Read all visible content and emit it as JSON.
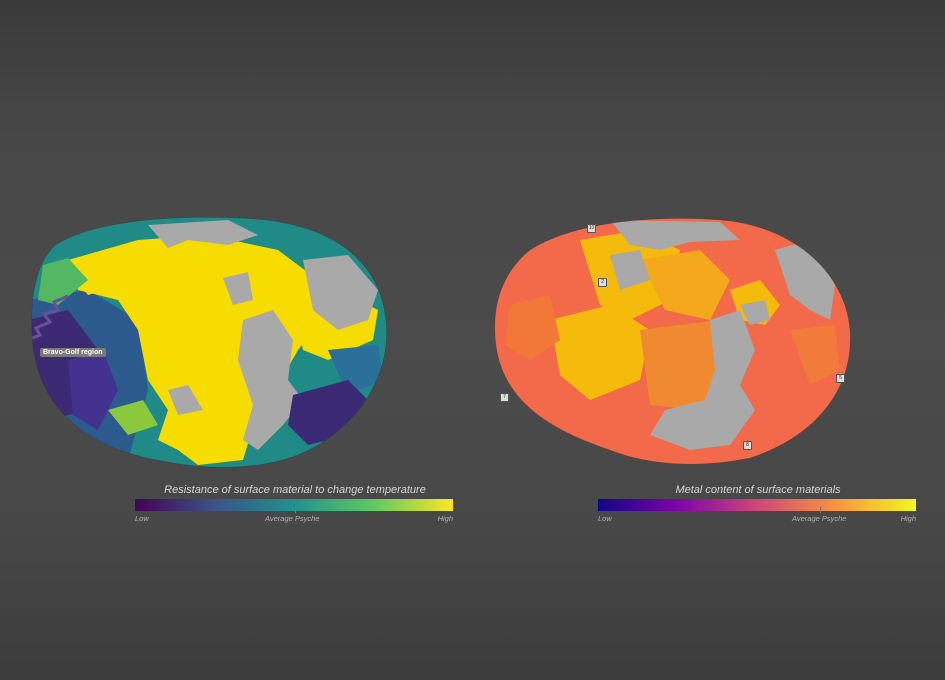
{
  "maps": {
    "left": {
      "region_label": "Bravo-Golf region",
      "colors": {
        "high": "#f7dc00",
        "mid": "#1f9189",
        "low": "#3b2a73",
        "gap": "#a9a9a9"
      }
    },
    "right": {
      "markers": [
        "10",
        "2",
        "7",
        "5",
        "8"
      ],
      "colors": {
        "base": "#f26a4a",
        "high": "#f5bb0c",
        "mid": "#f08a30",
        "gap": "#a9a9a9"
      }
    }
  },
  "legends": {
    "left": {
      "title": "Resistance of surface material to change temperature",
      "low": "Low",
      "mid": "Average Psyche",
      "high": "High",
      "gradient": [
        "#440154",
        "#3b528b",
        "#21918c",
        "#5ec962",
        "#fde725"
      ]
    },
    "right": {
      "title": "Metal content of surface materials",
      "low": "Low",
      "mid": "Average Psyche",
      "high": "High",
      "gradient": [
        "#0d0887",
        "#7e03a8",
        "#cc4778",
        "#f89540",
        "#f0f921"
      ]
    }
  }
}
